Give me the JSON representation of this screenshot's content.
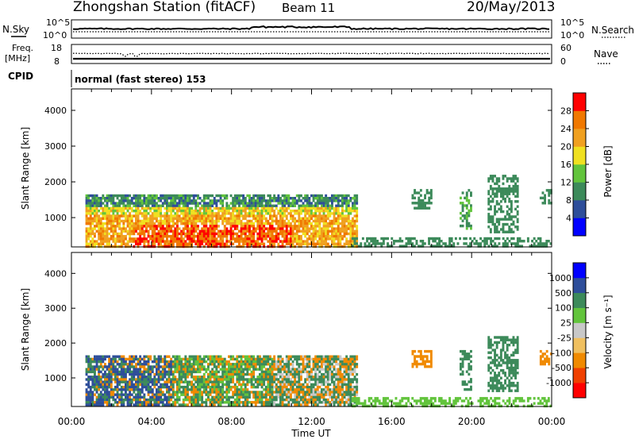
{
  "header": {
    "station": "Zhongshan Station (fitACF)",
    "beam": "Beam 11",
    "date": "20/May/2013"
  },
  "panels": {
    "nsky": {
      "label": "N.Sky",
      "tick_top": "10^5",
      "tick_bottom": "10^0"
    },
    "nsearch": {
      "label": "N.Search",
      "tick_top": "10^5",
      "tick_bottom": "10^0"
    },
    "freq": {
      "label_line1": "Freq.",
      "label_line2": "[MHz]",
      "tick_top": "18",
      "tick_bottom": "8"
    },
    "nave": {
      "label": "Nave",
      "tick_top": "60",
      "tick_bottom": "0"
    },
    "cpid": {
      "label": "CPID",
      "value": "normal (fast stereo) 153"
    }
  },
  "colors": {
    "power_scale": [
      "#0000ff",
      "#2e4e9a",
      "#3c8a5a",
      "#62c43c",
      "#f0e020",
      "#f0a020",
      "#f07800",
      "#ff0000"
    ],
    "velocity_scale": [
      "#ff0000",
      "#f04000",
      "#f08a00",
      "#f0c060",
      "#c8c8c8",
      "#62c43c",
      "#3c8a5a",
      "#2e4e9a",
      "#0000ff"
    ]
  },
  "chart_data": [
    {
      "type": "heatmap",
      "name": "power",
      "ylabel": "Slant Range [km]",
      "yticks": [
        "1000",
        "2000",
        "3000",
        "4000"
      ],
      "ylim": [
        180,
        4600
      ],
      "xticks": [
        "00:00",
        "04:00",
        "08:00",
        "12:00",
        "16:00",
        "20:00",
        "00:00"
      ],
      "colorbar": {
        "label": "Power [dB]",
        "ticks": [
          "4",
          "8",
          "12",
          "16",
          "20",
          "24",
          "28"
        ]
      },
      "regions": [
        {
          "t0": 0.7,
          "t1": 14.3,
          "r0": 220,
          "r1": 1650,
          "v": "mixed"
        },
        {
          "t0": 14.0,
          "t1": 24.0,
          "r0": 200,
          "r1": 450,
          "v": 10
        },
        {
          "t0": 17.0,
          "t1": 18.0,
          "r0": 1300,
          "r1": 1800,
          "v": 10
        },
        {
          "t0": 19.4,
          "t1": 20.0,
          "r0": 700,
          "r1": 1800,
          "v": 12
        },
        {
          "t0": 20.8,
          "t1": 22.3,
          "r0": 600,
          "r1": 2200,
          "v": 10
        },
        {
          "t0": 23.4,
          "t1": 24.0,
          "r0": 1400,
          "r1": 1800,
          "v": 10
        }
      ]
    },
    {
      "type": "heatmap",
      "name": "velocity",
      "ylabel": "Slant Range [km]",
      "yticks": [
        "1000",
        "2000",
        "3000",
        "4000"
      ],
      "ylim": [
        180,
        4600
      ],
      "xticks": [
        "00:00",
        "04:00",
        "08:00",
        "12:00",
        "16:00",
        "20:00",
        "00:00"
      ],
      "xlabel": "Time UT",
      "colorbar": {
        "label": "Velocity [m s⁻¹]",
        "ticks": [
          "1000",
          "500",
          "100",
          "25",
          "-25",
          "-100",
          "-500",
          "-1000"
        ]
      },
      "regions": [
        {
          "t0": 0.7,
          "t1": 14.3,
          "r0": 220,
          "r1": 1650,
          "v": "mixed"
        },
        {
          "t0": 14.0,
          "t1": 24.0,
          "r0": 200,
          "r1": 450,
          "v": 50
        },
        {
          "t0": 17.0,
          "t1": 18.0,
          "r0": 1300,
          "r1": 1800,
          "v": -150
        },
        {
          "t0": 19.4,
          "t1": 20.0,
          "r0": 700,
          "r1": 1800,
          "v": 150
        },
        {
          "t0": 20.8,
          "t1": 22.3,
          "r0": 600,
          "r1": 2200,
          "v": 150
        },
        {
          "t0": 23.4,
          "t1": 24.0,
          "r0": 1400,
          "r1": 1800,
          "v": -150
        }
      ]
    }
  ]
}
